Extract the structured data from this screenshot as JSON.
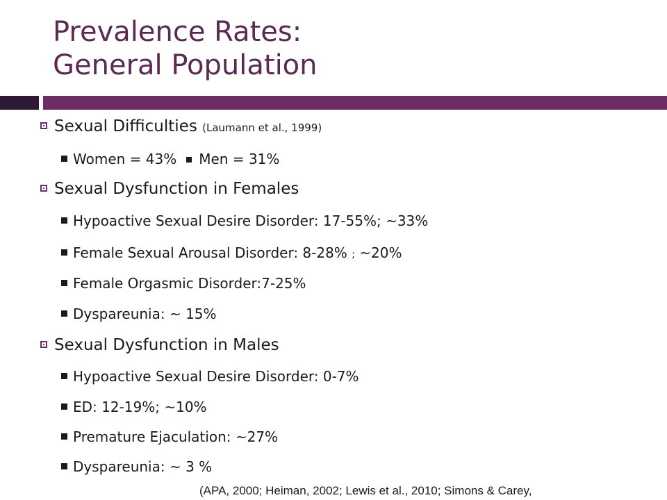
{
  "title": {
    "line1": "Prevalence Rates:",
    "line2": "General Population"
  },
  "sections": {
    "difficulties": {
      "heading": "Sexual Difficulties",
      "citation": "(Laumann et al., 1999)",
      "women": "Women = 43%",
      "men": "Men = 31%"
    },
    "females": {
      "heading": "Sexual Dysfunction in Females",
      "items": [
        "Hypoactive Sexual Desire Disorder: 17-55%; ~33%",
        "Female Sexual Arousal Disorder: 8-28%",
        "Female Orgasmic Disorder:7-25%",
        "Dyspareunia: ~ 15%"
      ],
      "item1_suffix_sep": ";",
      "item1_suffix": "~20%"
    },
    "males": {
      "heading": "Sexual Dysfunction in Males",
      "items": [
        "Hypoactive Sexual Desire Disorder: 0-7%",
        "ED: 12-19%;  ~10%",
        "Premature Ejaculation: ~27%",
        "Dyspareunia: ~ 3 %"
      ]
    }
  },
  "reference": "(APA, 2000; Heiman, 2002; Lewis et al., 2010; Simons & Carey,",
  "colors": {
    "title": "#5b2a52",
    "band_dark": "#2e1a33",
    "band_light": "#6b2f66"
  }
}
